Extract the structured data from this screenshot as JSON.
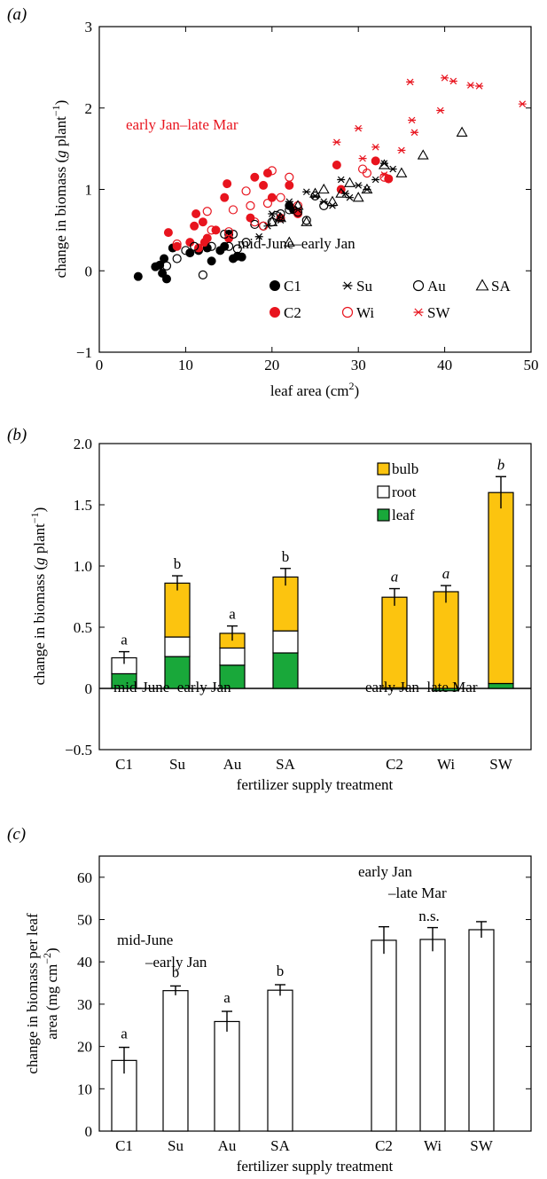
{
  "colors": {
    "black": "#000000",
    "red": "#e8141e",
    "bulb": "#fcc40f",
    "root": "#ffffff",
    "leaf": "#19a83a"
  },
  "chart_data": [
    {
      "panel": "(a)",
      "type": "scatter",
      "xlabel": "leaf area (cm²)",
      "ylabel": "change in biomass (g plant⁻¹)",
      "xlim": [
        0,
        50
      ],
      "ylim": [
        -1,
        3
      ],
      "xticks": [
        "0",
        "10",
        "20",
        "30",
        "40",
        "50"
      ],
      "yticks": [
        "−1",
        "0",
        "1",
        "2",
        "3"
      ],
      "annotations": {
        "late": "early Jan–late Mar",
        "early": "mid-June–early Jan"
      },
      "grid": false,
      "legend_position": "bottom-right",
      "series": [
        {
          "name": "C1",
          "marker": "filled-circle",
          "color": "#000000",
          "points": [
            [
              4.5,
              -0.07
            ],
            [
              6.5,
              0.05
            ],
            [
              7,
              0.07
            ],
            [
              7.3,
              -0.03
            ],
            [
              7.5,
              0.15
            ],
            [
              7.8,
              -0.1
            ],
            [
              8.5,
              0.28
            ],
            [
              10.5,
              0.22
            ],
            [
              11.5,
              0.25
            ],
            [
              12.5,
              0.28
            ],
            [
              13,
              0.12
            ],
            [
              14,
              0.25
            ],
            [
              14.5,
              0.3
            ],
            [
              15,
              0.45
            ],
            [
              15.5,
              0.15
            ],
            [
              16,
              0.18
            ],
            [
              16.5,
              0.17
            ],
            [
              22,
              0.8
            ],
            [
              22.5,
              0.75
            ]
          ]
        },
        {
          "name": "C2",
          "marker": "filled-circle",
          "color": "#e8141e",
          "points": [
            [
              8,
              0.47
            ],
            [
              9,
              0.3
            ],
            [
              10.5,
              0.35
            ],
            [
              11,
              0.55
            ],
            [
              11.2,
              0.7
            ],
            [
              11.5,
              0.28
            ],
            [
              12,
              0.6
            ],
            [
              12.2,
              0.35
            ],
            [
              12.5,
              0.4
            ],
            [
              13.5,
              0.5
            ],
            [
              14.5,
              0.9
            ],
            [
              14.8,
              1.07
            ],
            [
              15,
              0.4
            ],
            [
              17.5,
              0.65
            ],
            [
              18,
              1.15
            ],
            [
              19,
              1.05
            ],
            [
              19.5,
              1.2
            ],
            [
              20,
              0.9
            ],
            [
              21,
              0.65
            ],
            [
              22,
              1.05
            ],
            [
              23,
              0.7
            ],
            [
              27.5,
              1.3
            ],
            [
              28,
              1.0
            ],
            [
              32,
              1.35
            ],
            [
              33.5,
              1.13
            ]
          ]
        },
        {
          "name": "Su",
          "marker": "asterisk",
          "color": "#000000",
          "points": [
            [
              18.5,
              0.42
            ],
            [
              19.5,
              0.55
            ],
            [
              20,
              0.7
            ],
            [
              21,
              0.62
            ],
            [
              22,
              0.85
            ],
            [
              23,
              0.75
            ],
            [
              24,
              0.97
            ],
            [
              25,
              0.92
            ],
            [
              26,
              0.85
            ],
            [
              27,
              0.8
            ],
            [
              28,
              1.12
            ],
            [
              28.5,
              0.95
            ],
            [
              29,
              0.9
            ],
            [
              30,
              1.05
            ],
            [
              31,
              1.0
            ],
            [
              32,
              1.12
            ],
            [
              33,
              1.32
            ],
            [
              34,
              1.25
            ]
          ]
        },
        {
          "name": "Au",
          "marker": "open-circle",
          "color": "#000000",
          "points": [
            [
              7.8,
              0.06
            ],
            [
              9,
              0.15
            ],
            [
              10,
              0.25
            ],
            [
              11,
              0.3
            ],
            [
              12,
              -0.05
            ],
            [
              13,
              0.3
            ],
            [
              14.5,
              0.45
            ],
            [
              15,
              0.3
            ],
            [
              15.5,
              0.45
            ],
            [
              16,
              0.27
            ],
            [
              17,
              0.35
            ],
            [
              18,
              0.57
            ],
            [
              19,
              0.55
            ],
            [
              20,
              0.6
            ],
            [
              20.5,
              0.68
            ],
            [
              21,
              0.7
            ],
            [
              22,
              0.75
            ],
            [
              23,
              0.72
            ],
            [
              24,
              0.62
            ],
            [
              25,
              0.92
            ],
            [
              26,
              0.8
            ]
          ]
        },
        {
          "name": "Wi",
          "marker": "open-circle",
          "color": "#e8141e",
          "points": [
            [
              9,
              0.33
            ],
            [
              12.5,
              0.73
            ],
            [
              13,
              0.5
            ],
            [
              15,
              0.48
            ],
            [
              15.5,
              0.75
            ],
            [
              17,
              0.98
            ],
            [
              17.5,
              0.8
            ],
            [
              18,
              0.6
            ],
            [
              19,
              0.55
            ],
            [
              19.5,
              0.83
            ],
            [
              20,
              1.23
            ],
            [
              21,
              0.9
            ],
            [
              22,
              1.15
            ],
            [
              23,
              0.8
            ],
            [
              30.5,
              1.25
            ],
            [
              31,
              1.2
            ],
            [
              33,
              1.15
            ]
          ]
        },
        {
          "name": "SA",
          "marker": "open-triangle",
          "color": "#000000",
          "points": [
            [
              20,
              0.6
            ],
            [
              21,
              0.65
            ],
            [
              22,
              0.35
            ],
            [
              23,
              0.8
            ],
            [
              24,
              0.6
            ],
            [
              25,
              0.95
            ],
            [
              26,
              1.0
            ],
            [
              27,
              0.85
            ],
            [
              28,
              0.95
            ],
            [
              29,
              1.08
            ],
            [
              30,
              0.9
            ],
            [
              31,
              1.0
            ],
            [
              33,
              1.3
            ],
            [
              35,
              1.2
            ],
            [
              37.5,
              1.42
            ],
            [
              42,
              1.7
            ]
          ]
        },
        {
          "name": "SW",
          "marker": "asterisk",
          "color": "#e8141e",
          "points": [
            [
              27.5,
              1.58
            ],
            [
              30,
              1.75
            ],
            [
              30.5,
              1.38
            ],
            [
              32,
              1.52
            ],
            [
              33,
              1.18
            ],
            [
              35,
              1.48
            ],
            [
              36,
              2.32
            ],
            [
              36.2,
              1.85
            ],
            [
              36.5,
              1.7
            ],
            [
              39.5,
              1.97
            ],
            [
              40,
              2.37
            ],
            [
              41,
              2.33
            ],
            [
              43,
              2.28
            ],
            [
              44,
              2.27
            ],
            [
              49,
              2.05
            ]
          ]
        }
      ]
    },
    {
      "panel": "(b)",
      "type": "bar",
      "stacked": true,
      "xlabel": "fertilizer supply treatment",
      "ylabel": "change in biomass (g plant⁻¹)",
      "ylim": [
        -0.5,
        2.0
      ],
      "yticks": [
        "−0.5",
        "0",
        "0.5",
        "1.0",
        "1.5",
        "2.0"
      ],
      "categories": [
        "C1",
        "Su",
        "Au",
        "SA",
        "C2",
        "Wi",
        "SW"
      ],
      "series": [
        {
          "name": "leaf",
          "color": "#19a83a",
          "values": [
            0.12,
            0.26,
            0.19,
            0.29,
            0.005,
            -0.02,
            0.04
          ]
        },
        {
          "name": "root",
          "color": "#ffffff",
          "values": [
            0.13,
            0.16,
            0.14,
            0.18,
            0.0,
            0.0,
            0.0
          ]
        },
        {
          "name": "bulb",
          "color": "#fcc40f",
          "values": [
            0.0,
            0.44,
            0.12,
            0.44,
            0.74,
            0.79,
            1.56
          ]
        }
      ],
      "totals": [
        0.25,
        0.86,
        0.45,
        0.91,
        0.745,
        0.77,
        1.6
      ],
      "errors": [
        0.05,
        0.06,
        0.06,
        0.07,
        0.07,
        0.07,
        0.13
      ],
      "significance": [
        "a",
        "b",
        "a",
        "b",
        "a",
        "a",
        "b"
      ],
      "significance_italic": [
        false,
        false,
        false,
        false,
        true,
        true,
        true
      ],
      "legend_labels": [
        "bulb",
        "root",
        "leaf"
      ],
      "legend_position": "top-right",
      "annotations": {
        "early": "mid-June–early Jan",
        "late": "early Jan–late Mar"
      }
    },
    {
      "panel": "(c)",
      "type": "bar",
      "xlabel": "fertilizer supply treatment",
      "ylabel_line1": "change in biomass per leaf",
      "ylabel_line2": "area (mg cm⁻²)",
      "ylim": [
        0,
        65
      ],
      "yticks": [
        "0",
        "10",
        "20",
        "30",
        "40",
        "50",
        "60"
      ],
      "categories": [
        "C1",
        "Su",
        "Au",
        "SA",
        "C2",
        "Wi",
        "SW"
      ],
      "values": [
        16.7,
        33.2,
        25.9,
        33.3,
        45.1,
        45.3,
        47.6
      ],
      "errors": [
        3.1,
        1.1,
        2.4,
        1.3,
        3.2,
        2.8,
        1.9
      ],
      "significance": [
        "a",
        "b",
        "a",
        "b"
      ],
      "annotations": {
        "early_1": "mid-June",
        "early_2": "–early Jan",
        "late_1": "early Jan",
        "late_2": "–late Mar",
        "ns": "n.s."
      }
    }
  ]
}
